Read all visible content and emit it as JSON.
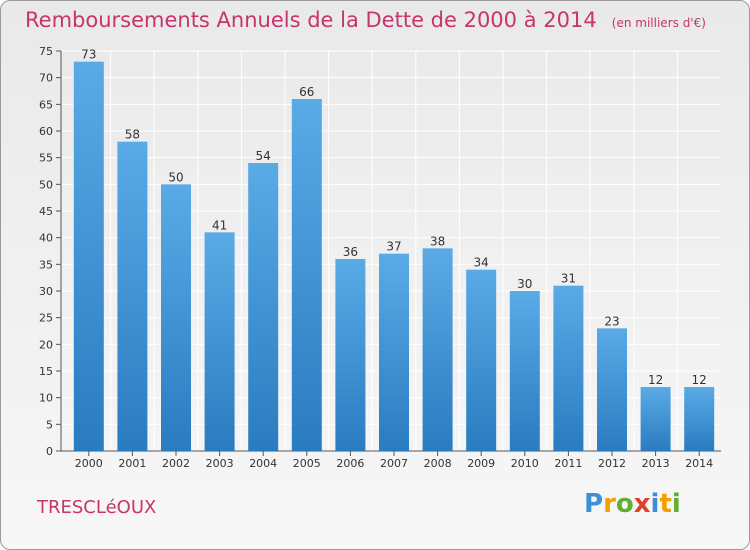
{
  "header": {
    "title": "Remboursements Annuels de la Dette de 2000 à 2014",
    "unit": "(en milliers d'€)"
  },
  "footer": {
    "commune": "TRESCLéOUX",
    "logo": [
      "P",
      "r",
      "o",
      "x",
      "i",
      "t",
      "i"
    ]
  },
  "colors": {
    "bar_light": "#5aaae6",
    "bar_dark": "#2a7cc0",
    "title": "#c8346c",
    "grid": "#ffffff",
    "background": "#eeeeee"
  },
  "chart_data": {
    "type": "bar",
    "title": "Remboursements Annuels de la Dette de 2000 à 2014",
    "xlabel": "",
    "ylabel": "",
    "categories": [
      "2000",
      "2001",
      "2002",
      "2003",
      "2004",
      "2005",
      "2006",
      "2007",
      "2008",
      "2009",
      "2010",
      "2011",
      "2012",
      "2013",
      "2014"
    ],
    "values": [
      73,
      58,
      50,
      41,
      54,
      66,
      36,
      37,
      38,
      34,
      30,
      31,
      23,
      12,
      12
    ],
    "ylim": [
      0,
      75
    ],
    "yticks": [
      0,
      5,
      10,
      15,
      20,
      25,
      30,
      35,
      40,
      45,
      50,
      55,
      60,
      65,
      70,
      75
    ],
    "grid": true,
    "data_labels": true
  }
}
